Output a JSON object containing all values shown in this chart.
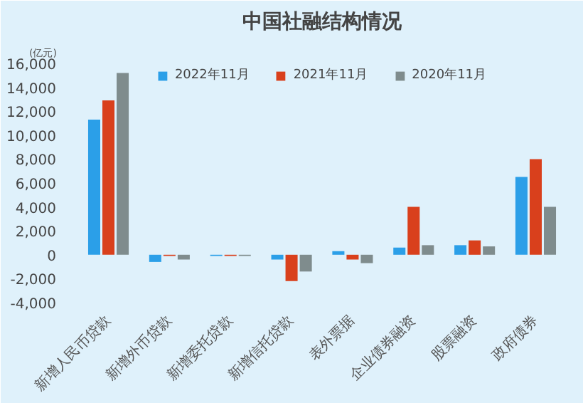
{
  "chart_data": {
    "type": "bar",
    "title": "中国社融结构情况",
    "ylabel": "(亿元)",
    "categories": [
      "新增人民币贷款",
      "新增外币贷款",
      "新增委托贷款",
      "新增信托贷款",
      "表外票据",
      "企业债券融资",
      "股票融资",
      "政府债券"
    ],
    "series": [
      {
        "name": "2022年11月",
        "color": "#2b9fe8",
        "values": [
          11300,
          -600,
          -100,
          -400,
          300,
          600,
          800,
          6500
        ]
      },
      {
        "name": "2021年11月",
        "color": "#d9401c",
        "values": [
          12900,
          -100,
          -100,
          -2200,
          -400,
          4000,
          1200,
          8000
        ]
      },
      {
        "name": "2020年11月",
        "color": "#7f8c8d",
        "values": [
          15200,
          -400,
          -100,
          -1400,
          -700,
          800,
          700,
          4000
        ]
      }
    ],
    "ylim": [
      -4000,
      16000
    ],
    "yticks": [
      {
        "value": -4000,
        "label": "-4,000"
      },
      {
        "value": -2000,
        "label": "-2,000"
      },
      0,
      {
        "value": 2000,
        "label": "2,000"
      },
      {
        "value": 4000,
        "label": "4,000"
      },
      {
        "value": 6000,
        "label": "6,000"
      },
      {
        "value": 8000,
        "label": "8,000"
      },
      {
        "value": 10000,
        "label": "10,000"
      },
      {
        "value": 12000,
        "label": "12,000"
      },
      {
        "value": 14000,
        "label": "14,000"
      },
      {
        "value": 16000,
        "label": "16,000"
      }
    ],
    "grid": false,
    "legend": "top"
  }
}
